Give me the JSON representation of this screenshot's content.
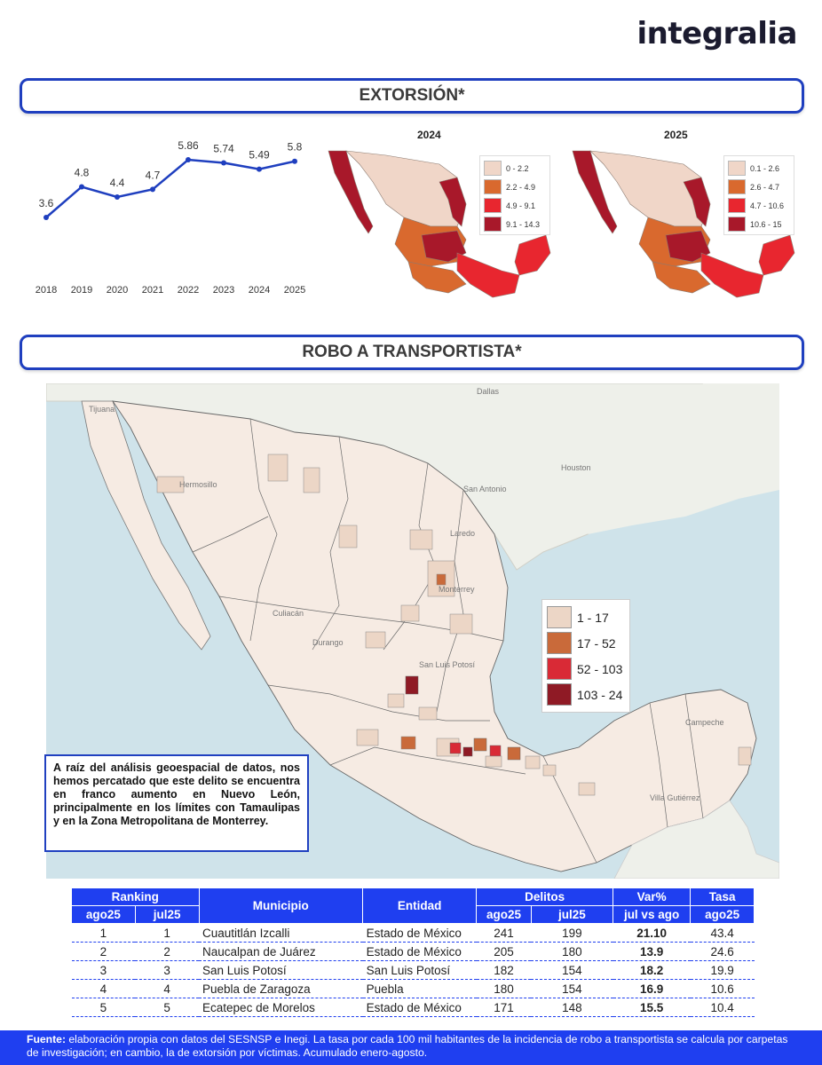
{
  "logo": "integralia",
  "sections": {
    "extorsion_title": "EXTORSIÓN*",
    "robo_title": "ROBO A TRANSPORTISTA*"
  },
  "chart_data": {
    "type": "line",
    "x": [
      "2018",
      "2019",
      "2020",
      "2021",
      "2022",
      "2023",
      "2024",
      "2025"
    ],
    "series": [
      {
        "values": [
          3.6,
          4.8,
          4.4,
          4.7,
          5.86,
          5.74,
          5.49,
          5.8
        ]
      }
    ],
    "data_labels": [
      "3.6",
      "4.8",
      "4.4",
      "4.7",
      "5.86",
      "5.74",
      "5.49",
      "5.8"
    ],
    "color": "#1f3fbf",
    "grid": false
  },
  "maps": {
    "m2024": {
      "year": "2024",
      "legend": [
        "0 - 2.2",
        "2.2 - 4.9",
        "4.9 - 9.1",
        "9.1 - 14.3"
      ]
    },
    "m2025": {
      "year": "2025",
      "legend": [
        "0.1 - 2.6",
        "2.6 - 4.7",
        "4.7 - 10.6",
        "10.6 - 15"
      ]
    },
    "colors": [
      "#f0d6c8",
      "#d9692e",
      "#e8262f",
      "#a8182a"
    ],
    "robo": {
      "legend": [
        "1 - 17",
        "17 - 52",
        "52 - 103",
        "103 - 24"
      ],
      "colors": [
        "#ecd6c6",
        "#c96a3a",
        "#d92a36",
        "#8f1a25"
      ],
      "place_labels": [
        "Dallas",
        "Houston",
        "San Antonio",
        "Laredo",
        "Tijuana",
        "Hermosillo",
        "Culiacán",
        "Durango",
        "Monterrey",
        "San Luis Potosí",
        "Villa Gutiérrez",
        "Campeche"
      ]
    }
  },
  "callout": "A raíz del análisis geoespacial de datos, nos hemos percatado que este delito se encuentra en franco aumento en Nuevo León, principalmente en los límites con Tamaulipas y en la Zona Metropolitana de Monterrey.",
  "table": {
    "h_ranking": "Ranking",
    "h_ago25": "ago25",
    "h_jul25": "jul25",
    "h_municipio": "Municipio",
    "h_entidad": "Entidad",
    "h_delitos": "Delitos",
    "h_var": "Var%",
    "h_jul_vs_ago": "jul vs ago",
    "h_tasa": "Tasa",
    "h_tasa_ago25": "ago25",
    "rows": [
      {
        "r_ago": "1",
        "r_jul": "1",
        "municipio": "Cuautitlán Izcalli",
        "entidad": "Estado de México",
        "d_ago": "241",
        "d_jul": "199",
        "var": "21.10",
        "tasa": "43.4"
      },
      {
        "r_ago": "2",
        "r_jul": "2",
        "municipio": "Naucalpan de Juárez",
        "entidad": "Estado de México",
        "d_ago": "205",
        "d_jul": "180",
        "var": "13.9",
        "tasa": "24.6"
      },
      {
        "r_ago": "3",
        "r_jul": "3",
        "municipio": "San Luis Potosí",
        "entidad": "San Luis Potosí",
        "d_ago": "182",
        "d_jul": "154",
        "var": "18.2",
        "tasa": "19.9"
      },
      {
        "r_ago": "4",
        "r_jul": "4",
        "municipio": "Puebla de Zaragoza",
        "entidad": "Puebla",
        "d_ago": "180",
        "d_jul": "154",
        "var": "16.9",
        "tasa": "10.6"
      },
      {
        "r_ago": "5",
        "r_jul": "5",
        "municipio": "Ecatepec de Morelos",
        "entidad": "Estado de México",
        "d_ago": "171",
        "d_jul": "148",
        "var": "15.5",
        "tasa": "10.4"
      }
    ]
  },
  "footer": {
    "label": "Fuente:",
    "text": " elaboración propia con datos del SESNSP e Inegi. La tasa por cada 100 mil habitantes de la incidencia de robo a transportista se calcula por carpetas de investigación; en cambio, la de  extorsión por víctimas. Acumulado enero-agosto."
  }
}
